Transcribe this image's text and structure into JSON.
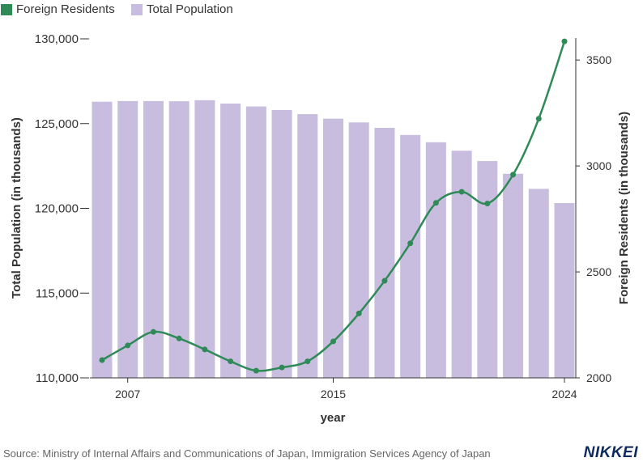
{
  "chart_data": {
    "type": "bar",
    "x": [
      2006,
      2007,
      2008,
      2009,
      2010,
      2011,
      2012,
      2013,
      2014,
      2015,
      2016,
      2017,
      2018,
      2019,
      2020,
      2021,
      2022,
      2023,
      2024
    ],
    "series": [
      {
        "name": "Total Population",
        "type": "bar",
        "axis": "left",
        "color": "#c9bddf",
        "values": [
          126290,
          126330,
          126330,
          126320,
          126380,
          126180,
          126010,
          125800,
          125560,
          125290,
          125070,
          124750,
          124330,
          123900,
          123400,
          122790,
          122040,
          121150,
          120310
        ]
      },
      {
        "name": "Foreign Residents",
        "type": "line",
        "axis": "right",
        "color": "#2e8b57",
        "values": [
          2084,
          2153,
          2217,
          2186,
          2134,
          2078,
          2034,
          2049,
          2078,
          2172,
          2304,
          2458,
          2635,
          2826,
          2878,
          2823,
          2959,
          3223,
          3588
        ]
      }
    ],
    "xlabel": "year",
    "ylabel_left": "Total Population (in thousands)",
    "ylabel_right": "Foreign Residents (in thousands)",
    "ylim_left": [
      110000,
      130000
    ],
    "ylim_right": [
      2000,
      3600
    ],
    "x_ticks": [
      "2007",
      "2015",
      "2024"
    ],
    "y_ticks_left": [
      "110,000",
      "115,000",
      "120,000",
      "125,000",
      "130,000"
    ],
    "y_ticks_right": [
      "2000",
      "2500",
      "3000",
      "3500"
    ],
    "grid": false,
    "legend_position": "top-left"
  },
  "legend": {
    "foreign": "Foreign Residents",
    "total": "Total Population"
  },
  "footer": {
    "source": "Source: Ministry of Internal Affairs and Communications of Japan, Immigration Services Agency of Japan",
    "logo": "NIKKEI"
  }
}
